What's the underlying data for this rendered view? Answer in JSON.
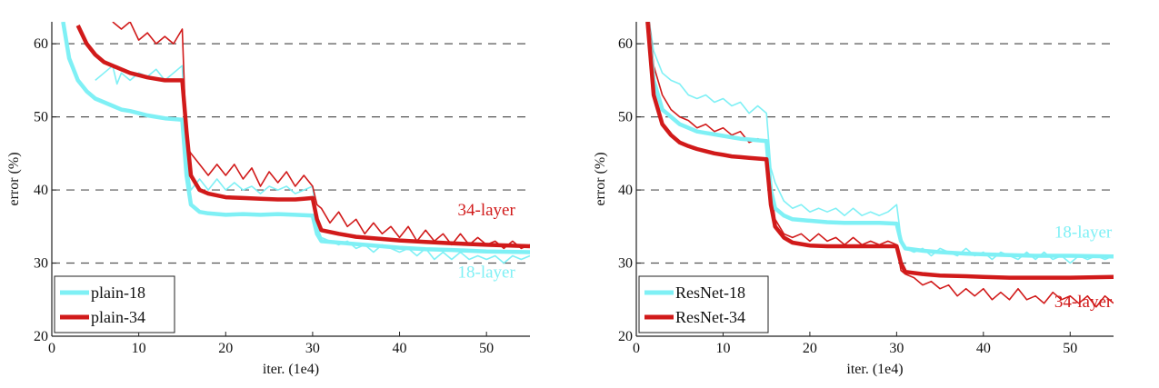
{
  "chart_data": [
    {
      "type": "line",
      "xlabel": "iter. (1e4)",
      "ylabel": "error (%)",
      "xlim": [
        0,
        55
      ],
      "ylim": [
        20,
        63
      ],
      "xticks": [
        0,
        10,
        20,
        30,
        40,
        50
      ],
      "yticks": [
        20,
        30,
        40,
        50,
        60
      ],
      "grid": "dashed horizontal at y-ticks",
      "legend_position": "bottom-left",
      "annotations": [
        {
          "text": "34-layer",
          "color": "#d11a1a",
          "x": 50,
          "y": 36.5
        },
        {
          "text": "18-layer",
          "color": "#7ff0f5",
          "x": 50,
          "y": 28
        }
      ],
      "series": [
        {
          "name": "plain-18",
          "color": "#7ff0f5",
          "kind": "val",
          "x": [
            1.3,
            2,
            3,
            4,
            5,
            6,
            7,
            8,
            9,
            10,
            11,
            12,
            13,
            14,
            15,
            15.5,
            16,
            17,
            18,
            20,
            22,
            24,
            26,
            28,
            30,
            30.5,
            31,
            33,
            35,
            38,
            40,
            43,
            46,
            50,
            55
          ],
          "y": [
            63,
            58,
            55,
            53.5,
            52.5,
            52,
            51.5,
            51,
            50.8,
            50.5,
            50.2,
            50,
            49.8,
            49.7,
            49.6,
            42,
            38,
            37,
            36.8,
            36.6,
            36.7,
            36.6,
            36.7,
            36.6,
            36.5,
            34,
            33,
            32.8,
            32.6,
            32.3,
            32.1,
            31.9,
            31.8,
            31.6,
            31.5
          ]
        },
        {
          "name": "plain-34",
          "color": "#d11a1a",
          "kind": "val",
          "x": [
            3,
            4,
            5,
            6,
            7,
            8,
            9,
            10,
            11,
            12,
            13,
            14,
            15,
            15.5,
            16,
            17,
            18,
            20,
            22,
            24,
            26,
            28,
            29,
            30,
            30.5,
            31,
            33,
            35,
            38,
            40,
            43,
            46,
            50,
            55
          ],
          "y": [
            62.5,
            60,
            58.5,
            57.5,
            57,
            56.5,
            56,
            55.7,
            55.4,
            55.2,
            55,
            55,
            55,
            48,
            42,
            40,
            39.5,
            39,
            38.9,
            38.8,
            38.7,
            38.7,
            38.8,
            38.9,
            36,
            34.5,
            34,
            33.6,
            33.3,
            33.1,
            32.9,
            32.7,
            32.5,
            32.3
          ]
        },
        {
          "name": "plain-18 (train)",
          "color": "#7ff0f5",
          "kind": "train",
          "x": [
            5,
            6,
            7,
            7.5,
            8,
            9,
            10,
            11,
            12,
            13,
            14,
            15,
            15.5,
            16,
            17,
            18,
            19,
            20,
            21,
            22,
            23,
            24,
            25,
            26,
            27,
            28,
            29,
            30,
            30.5,
            31,
            32,
            33,
            34,
            35,
            36,
            37,
            38,
            39,
            40,
            41,
            42,
            43,
            44,
            45,
            46,
            47,
            48,
            49,
            50,
            51,
            52,
            53,
            54,
            55
          ],
          "y": [
            55,
            56,
            57,
            54.5,
            56,
            55,
            56,
            55.5,
            56.5,
            55,
            56,
            57,
            44,
            40,
            41.5,
            40,
            41.5,
            40,
            41,
            40,
            40.5,
            39.5,
            40.5,
            40,
            40.5,
            39.5,
            40,
            40.5,
            35,
            33.5,
            33,
            32.5,
            33,
            32,
            32.5,
            31.5,
            32.5,
            32,
            31.5,
            32,
            31,
            32,
            30.5,
            31.5,
            30.5,
            31.5,
            30.5,
            31,
            30.5,
            31,
            30,
            31,
            30.5,
            31
          ]
        },
        {
          "name": "plain-34 (train)",
          "color": "#d11a1a",
          "kind": "train",
          "x": [
            7,
            8,
            9,
            10,
            11,
            12,
            13,
            14,
            15,
            15.5,
            16,
            17,
            18,
            19,
            20,
            21,
            22,
            23,
            24,
            25,
            26,
            27,
            28,
            29,
            30,
            30.5,
            31,
            32,
            33,
            34,
            35,
            36,
            37,
            38,
            39,
            40,
            41,
            42,
            43,
            44,
            45,
            46,
            47,
            48,
            49,
            50,
            51,
            52,
            53,
            54,
            55
          ],
          "y": [
            63,
            62,
            63,
            60.5,
            61.5,
            60,
            61,
            60,
            62,
            46,
            45,
            43.5,
            42,
            43.5,
            42,
            43.5,
            41.5,
            43,
            40.5,
            42.5,
            41,
            42.5,
            40.5,
            42,
            40.5,
            38,
            37.5,
            35.5,
            37,
            35,
            36,
            34,
            35.5,
            34,
            35,
            33.5,
            35,
            33,
            34.5,
            33,
            34,
            32.5,
            34,
            32.5,
            33.5,
            32.5,
            33,
            32,
            33,
            32,
            32.5
          ]
        }
      ]
    },
    {
      "type": "line",
      "xlabel": "iter. (1e4)",
      "ylabel": "error (%)",
      "xlim": [
        0,
        55
      ],
      "ylim": [
        20,
        63
      ],
      "xticks": [
        0,
        10,
        20,
        30,
        40,
        50
      ],
      "yticks": [
        20,
        30,
        40,
        50,
        60
      ],
      "grid": "dashed horizontal at y-ticks",
      "legend_position": "bottom-left",
      "annotations": [
        {
          "text": "18-layer",
          "color": "#7ff0f5",
          "x": 51.5,
          "y": 33.5
        },
        {
          "text": "34-layer",
          "color": "#d11a1a",
          "x": 51.5,
          "y": 24
        }
      ],
      "series": [
        {
          "name": "ResNet-18",
          "color": "#7ff0f5",
          "kind": "val",
          "x": [
            1.3,
            2,
            3,
            4,
            5,
            6,
            7,
            8,
            9,
            10,
            11,
            12,
            13,
            14,
            15,
            15.5,
            16,
            17,
            18,
            20,
            22,
            24,
            26,
            28,
            30,
            30.5,
            31,
            33,
            35,
            38,
            40,
            43,
            46,
            50,
            55
          ],
          "y": [
            63,
            55,
            51,
            50,
            49,
            48.5,
            48,
            47.8,
            47.6,
            47.4,
            47.2,
            47,
            46.9,
            46.8,
            46.7,
            40,
            37.5,
            36.5,
            36,
            35.8,
            35.6,
            35.5,
            35.5,
            35.5,
            35.4,
            33,
            32,
            31.7,
            31.5,
            31.3,
            31.2,
            31.1,
            31,
            31,
            30.9
          ]
        },
        {
          "name": "ResNet-34",
          "color": "#d11a1a",
          "kind": "val",
          "x": [
            1.3,
            2,
            3,
            4,
            5,
            6,
            7,
            8,
            9,
            10,
            11,
            12,
            13,
            14,
            15,
            15.5,
            16,
            17,
            18,
            20,
            22,
            24,
            26,
            28,
            30,
            30.5,
            31,
            33,
            35,
            38,
            40,
            43,
            46,
            50,
            55
          ],
          "y": [
            63,
            53,
            49,
            47.5,
            46.5,
            46,
            45.6,
            45.3,
            45,
            44.8,
            44.6,
            44.5,
            44.4,
            44.3,
            44.2,
            38,
            35,
            33.5,
            32.8,
            32.4,
            32.3,
            32.3,
            32.3,
            32.3,
            32.3,
            30,
            28.8,
            28.5,
            28.3,
            28.2,
            28.1,
            28,
            28,
            28,
            28.1
          ]
        },
        {
          "name": "ResNet-18 (train)",
          "color": "#7ff0f5",
          "kind": "train",
          "x": [
            1.5,
            2,
            3,
            4,
            5,
            6,
            7,
            8,
            9,
            10,
            11,
            12,
            13,
            14,
            15,
            15.5,
            16,
            17,
            18,
            19,
            20,
            21,
            22,
            23,
            24,
            25,
            26,
            27,
            28,
            29,
            30,
            30.5,
            31,
            32,
            33,
            34,
            35,
            36,
            37,
            38,
            39,
            40,
            41,
            42,
            43,
            44,
            45,
            46,
            47,
            48,
            49,
            50,
            51,
            52,
            53,
            54,
            55
          ],
          "y": [
            63,
            59,
            56,
            55,
            54.5,
            53,
            52.5,
            53,
            52,
            52.5,
            51.5,
            52,
            50.5,
            51.5,
            50.5,
            43,
            41,
            38.5,
            37.5,
            38,
            37,
            37.5,
            37,
            37.5,
            36.5,
            37.5,
            36.5,
            37,
            36.5,
            37,
            38,
            33.5,
            32,
            31.5,
            32,
            31,
            32,
            31.5,
            31,
            32,
            31,
            31.5,
            30.5,
            31.5,
            31,
            30.5,
            31.5,
            30.5,
            31.5,
            30.5,
            31,
            30,
            31,
            30.5,
            31,
            30.5,
            31
          ]
        },
        {
          "name": "ResNet-34 (train)",
          "color": "#d11a1a",
          "kind": "train",
          "x": [
            1.5,
            2,
            3,
            4,
            5,
            6,
            7,
            8,
            9,
            10,
            11,
            12,
            13,
            14,
            15,
            15.5,
            16,
            17,
            18,
            19,
            20,
            21,
            22,
            23,
            24,
            25,
            26,
            27,
            28,
            29,
            30,
            30.5,
            31,
            32,
            33,
            34,
            35,
            36,
            37,
            38,
            39,
            40,
            41,
            42,
            43,
            44,
            45,
            46,
            47,
            48,
            49,
            50,
            51,
            52,
            53,
            54,
            55
          ],
          "y": [
            63,
            57,
            53,
            51,
            50,
            49.5,
            48.5,
            49,
            48,
            48.5,
            47.5,
            48,
            46.5,
            47,
            46.5,
            40,
            36,
            34,
            33.5,
            34,
            33,
            34,
            33,
            33.5,
            32.5,
            33.5,
            32.5,
            33,
            32.5,
            33,
            32.5,
            29,
            28.5,
            28,
            27,
            27.5,
            26.5,
            27,
            25.5,
            26.5,
            25.5,
            26.5,
            25,
            26,
            25,
            26.5,
            25,
            25.5,
            24.5,
            26,
            25,
            25.5,
            24.5,
            25.5,
            24,
            25.5,
            24.5
          ]
        }
      ]
    }
  ]
}
